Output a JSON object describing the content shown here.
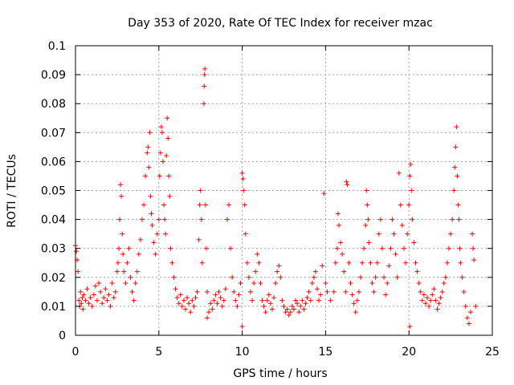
{
  "chart_data": {
    "type": "scatter",
    "title": "Day 353 of 2020, Rate Of TEC Index for receiver mzac",
    "xlabel": "GPS time / hours",
    "ylabel": "ROTI / TECUs",
    "xlim": [
      0,
      25
    ],
    "ylim": [
      0,
      0.1
    ],
    "xticks": [
      0,
      5,
      10,
      15,
      20,
      25
    ],
    "xtick_labels": [
      "0",
      "5",
      "10",
      "15",
      "20",
      "25"
    ],
    "yticks": [
      0,
      0.01,
      0.02,
      0.03,
      0.04,
      0.05,
      0.06,
      0.07,
      0.08,
      0.09,
      0.1
    ],
    "ytick_labels": [
      "0",
      "0.01",
      "0.02",
      "0.03",
      "0.04",
      "0.05",
      "0.06",
      "0.07",
      "0.08",
      "0.09",
      "0.1"
    ],
    "grid": true,
    "marker": "plus",
    "color": "#ff0000",
    "points": [
      [
        0.0,
        0.031
      ],
      [
        0.05,
        0.029
      ],
      [
        0.1,
        0.026
      ],
      [
        0.15,
        0.022
      ],
      [
        0.2,
        0.012
      ],
      [
        0.25,
        0.01
      ],
      [
        0.3,
        0.015
      ],
      [
        0.35,
        0.011
      ],
      [
        0.4,
        0.013
      ],
      [
        0.45,
        0.009
      ],
      [
        0.5,
        0.014
      ],
      [
        0.6,
        0.012
      ],
      [
        0.7,
        0.016
      ],
      [
        0.8,
        0.011
      ],
      [
        0.9,
        0.013
      ],
      [
        1.0,
        0.01
      ],
      [
        1.1,
        0.014
      ],
      [
        1.2,
        0.017
      ],
      [
        1.3,
        0.012
      ],
      [
        1.4,
        0.018
      ],
      [
        1.5,
        0.015
      ],
      [
        1.6,
        0.011
      ],
      [
        1.7,
        0.013
      ],
      [
        1.8,
        0.016
      ],
      [
        1.9,
        0.012
      ],
      [
        2.0,
        0.014
      ],
      [
        2.1,
        0.01
      ],
      [
        2.2,
        0.018
      ],
      [
        2.3,
        0.013
      ],
      [
        2.4,
        0.015
      ],
      [
        2.5,
        0.022
      ],
      [
        2.55,
        0.025
      ],
      [
        2.6,
        0.03
      ],
      [
        2.65,
        0.04
      ],
      [
        2.7,
        0.052
      ],
      [
        2.75,
        0.048
      ],
      [
        2.8,
        0.035
      ],
      [
        2.85,
        0.028
      ],
      [
        2.9,
        0.022
      ],
      [
        3.0,
        0.018
      ],
      [
        3.1,
        0.025
      ],
      [
        3.2,
        0.03
      ],
      [
        3.3,
        0.02
      ],
      [
        3.4,
        0.015
      ],
      [
        3.5,
        0.012
      ],
      [
        3.6,
        0.018
      ],
      [
        3.7,
        0.022
      ],
      [
        3.8,
        0.028
      ],
      [
        3.9,
        0.033
      ],
      [
        4.0,
        0.04
      ],
      [
        4.1,
        0.045
      ],
      [
        4.2,
        0.055
      ],
      [
        4.3,
        0.063
      ],
      [
        4.35,
        0.065
      ],
      [
        4.4,
        0.058
      ],
      [
        4.45,
        0.07
      ],
      [
        4.5,
        0.048
      ],
      [
        4.55,
        0.042
      ],
      [
        4.6,
        0.038
      ],
      [
        4.7,
        0.032
      ],
      [
        4.8,
        0.028
      ],
      [
        4.9,
        0.035
      ],
      [
        5.0,
        0.04
      ],
      [
        5.05,
        0.055
      ],
      [
        5.1,
        0.063
      ],
      [
        5.15,
        0.072
      ],
      [
        5.2,
        0.07
      ],
      [
        5.25,
        0.06
      ],
      [
        5.3,
        0.045
      ],
      [
        5.35,
        0.04
      ],
      [
        5.4,
        0.035
      ],
      [
        5.45,
        0.062
      ],
      [
        5.5,
        0.075
      ],
      [
        5.55,
        0.068
      ],
      [
        5.6,
        0.055
      ],
      [
        5.65,
        0.048
      ],
      [
        5.7,
        0.03
      ],
      [
        5.8,
        0.025
      ],
      [
        5.9,
        0.02
      ],
      [
        6.0,
        0.016
      ],
      [
        6.1,
        0.013
      ],
      [
        6.2,
        0.011
      ],
      [
        6.3,
        0.014
      ],
      [
        6.4,
        0.01
      ],
      [
        6.5,
        0.012
      ],
      [
        6.6,
        0.009
      ],
      [
        6.7,
        0.013
      ],
      [
        6.8,
        0.011
      ],
      [
        6.9,
        0.008
      ],
      [
        7.0,
        0.012
      ],
      [
        7.1,
        0.01
      ],
      [
        7.2,
        0.013
      ],
      [
        7.3,
        0.015
      ],
      [
        7.4,
        0.033
      ],
      [
        7.45,
        0.045
      ],
      [
        7.5,
        0.05
      ],
      [
        7.55,
        0.04
      ],
      [
        7.6,
        0.025
      ],
      [
        7.7,
        0.08
      ],
      [
        7.72,
        0.086
      ],
      [
        7.74,
        0.09
      ],
      [
        7.76,
        0.092
      ],
      [
        7.8,
        0.045
      ],
      [
        7.85,
        0.03
      ],
      [
        7.9,
        0.015
      ],
      [
        8.0,
        0.008
      ],
      [
        8.1,
        0.011
      ],
      [
        8.2,
        0.009
      ],
      [
        8.3,
        0.012
      ],
      [
        8.4,
        0.014
      ],
      [
        8.5,
        0.011
      ],
      [
        8.6,
        0.015
      ],
      [
        8.7,
        0.013
      ],
      [
        8.8,
        0.01
      ],
      [
        8.9,
        0.012
      ],
      [
        9.0,
        0.016
      ],
      [
        9.1,
        0.04
      ],
      [
        9.2,
        0.045
      ],
      [
        9.3,
        0.03
      ],
      [
        9.4,
        0.02
      ],
      [
        9.5,
        0.015
      ],
      [
        9.6,
        0.012
      ],
      [
        9.7,
        0.01
      ],
      [
        9.8,
        0.014
      ],
      [
        9.9,
        0.018
      ],
      [
        10.0,
        0.056
      ],
      [
        10.05,
        0.054
      ],
      [
        10.1,
        0.05
      ],
      [
        10.15,
        0.045
      ],
      [
        10.2,
        0.035
      ],
      [
        10.3,
        0.025
      ],
      [
        10.4,
        0.02
      ],
      [
        10.5,
        0.015
      ],
      [
        10.6,
        0.012
      ],
      [
        10.7,
        0.018
      ],
      [
        10.8,
        0.022
      ],
      [
        10.9,
        0.028
      ],
      [
        11.0,
        0.025
      ],
      [
        11.1,
        0.018
      ],
      [
        11.2,
        0.012
      ],
      [
        11.3,
        0.01
      ],
      [
        11.4,
        0.008
      ],
      [
        11.5,
        0.012
      ],
      [
        11.6,
        0.014
      ],
      [
        11.7,
        0.011
      ],
      [
        11.8,
        0.009
      ],
      [
        11.9,
        0.013
      ],
      [
        12.0,
        0.018
      ],
      [
        12.1,
        0.022
      ],
      [
        12.2,
        0.024
      ],
      [
        12.3,
        0.02
      ],
      [
        12.4,
        0.012
      ],
      [
        12.5,
        0.01
      ],
      [
        12.6,
        0.008
      ],
      [
        12.7,
        0.009
      ],
      [
        12.8,
        0.007
      ],
      [
        12.9,
        0.008
      ],
      [
        13.0,
        0.01
      ],
      [
        13.1,
        0.009
      ],
      [
        13.2,
        0.012
      ],
      [
        13.3,
        0.011
      ],
      [
        13.4,
        0.008
      ],
      [
        13.5,
        0.01
      ],
      [
        13.6,
        0.012
      ],
      [
        13.7,
        0.009
      ],
      [
        13.8,
        0.011
      ],
      [
        13.9,
        0.013
      ],
      [
        14.0,
        0.015
      ],
      [
        14.1,
        0.012
      ],
      [
        14.2,
        0.018
      ],
      [
        14.3,
        0.02
      ],
      [
        14.4,
        0.022
      ],
      [
        14.5,
        0.016
      ],
      [
        14.6,
        0.012
      ],
      [
        14.7,
        0.014
      ],
      [
        14.8,
        0.024
      ],
      [
        14.9,
        0.049
      ],
      [
        15.0,
        0.018
      ],
      [
        15.1,
        0.015
      ],
      [
        15.3,
        0.012
      ],
      [
        15.5,
        0.015
      ],
      [
        15.6,
        0.025
      ],
      [
        15.7,
        0.03
      ],
      [
        15.75,
        0.042
      ],
      [
        15.8,
        0.038
      ],
      [
        15.9,
        0.032
      ],
      [
        16.0,
        0.028
      ],
      [
        16.1,
        0.022
      ],
      [
        16.2,
        0.015
      ],
      [
        16.25,
        0.053
      ],
      [
        16.3,
        0.052
      ],
      [
        16.4,
        0.025
      ],
      [
        16.5,
        0.018
      ],
      [
        16.6,
        0.014
      ],
      [
        16.7,
        0.011
      ],
      [
        16.8,
        0.008
      ],
      [
        16.9,
        0.012
      ],
      [
        17.0,
        0.015
      ],
      [
        17.1,
        0.02
      ],
      [
        17.2,
        0.025
      ],
      [
        17.3,
        0.03
      ],
      [
        17.4,
        0.038
      ],
      [
        17.45,
        0.05
      ],
      [
        17.5,
        0.045
      ],
      [
        17.55,
        0.04
      ],
      [
        17.6,
        0.032
      ],
      [
        17.7,
        0.025
      ],
      [
        17.8,
        0.018
      ],
      [
        17.9,
        0.015
      ],
      [
        18.0,
        0.02
      ],
      [
        18.1,
        0.025
      ],
      [
        18.2,
        0.035
      ],
      [
        18.3,
        0.04
      ],
      [
        18.4,
        0.03
      ],
      [
        18.5,
        0.02
      ],
      [
        18.6,
        0.014
      ],
      [
        18.7,
        0.018
      ],
      [
        18.8,
        0.024
      ],
      [
        18.9,
        0.03
      ],
      [
        19.0,
        0.04
      ],
      [
        19.1,
        0.035
      ],
      [
        19.2,
        0.028
      ],
      [
        19.3,
        0.02
      ],
      [
        19.4,
        0.056
      ],
      [
        19.5,
        0.045
      ],
      [
        19.6,
        0.038
      ],
      [
        19.7,
        0.03
      ],
      [
        19.8,
        0.025
      ],
      [
        19.9,
        0.035
      ],
      [
        20.0,
        0.045
      ],
      [
        20.05,
        0.055
      ],
      [
        20.1,
        0.059
      ],
      [
        20.15,
        0.05
      ],
      [
        20.2,
        0.04
      ],
      [
        20.3,
        0.032
      ],
      [
        20.4,
        0.025
      ],
      [
        20.5,
        0.022
      ],
      [
        20.6,
        0.018
      ],
      [
        20.7,
        0.015
      ],
      [
        20.8,
        0.012
      ],
      [
        20.9,
        0.014
      ],
      [
        21.0,
        0.011
      ],
      [
        21.1,
        0.013
      ],
      [
        21.2,
        0.01
      ],
      [
        21.3,
        0.012
      ],
      [
        21.4,
        0.014
      ],
      [
        21.5,
        0.016
      ],
      [
        21.6,
        0.012
      ],
      [
        21.7,
        0.009
      ],
      [
        21.8,
        0.011
      ],
      [
        21.9,
        0.013
      ],
      [
        22.0,
        0.015
      ],
      [
        22.1,
        0.018
      ],
      [
        22.2,
        0.02
      ],
      [
        22.3,
        0.025
      ],
      [
        22.4,
        0.03
      ],
      [
        22.5,
        0.035
      ],
      [
        22.6,
        0.04
      ],
      [
        22.7,
        0.05
      ],
      [
        22.75,
        0.058
      ],
      [
        22.8,
        0.065
      ],
      [
        22.85,
        0.072
      ],
      [
        22.9,
        0.055
      ],
      [
        22.95,
        0.045
      ],
      [
        23.0,
        0.04
      ],
      [
        23.05,
        0.03
      ],
      [
        23.1,
        0.025
      ],
      [
        23.2,
        0.02
      ],
      [
        23.3,
        0.015
      ],
      [
        23.4,
        0.01
      ],
      [
        23.5,
        0.006
      ],
      [
        23.6,
        0.004
      ],
      [
        23.7,
        0.008
      ],
      [
        23.8,
        0.035
      ],
      [
        23.85,
        0.03
      ],
      [
        23.9,
        0.026
      ],
      [
        24.0,
        0.01
      ],
      [
        20.05,
        0.003
      ],
      [
        10.0,
        0.003
      ],
      [
        7.9,
        0.006
      ]
    ]
  }
}
